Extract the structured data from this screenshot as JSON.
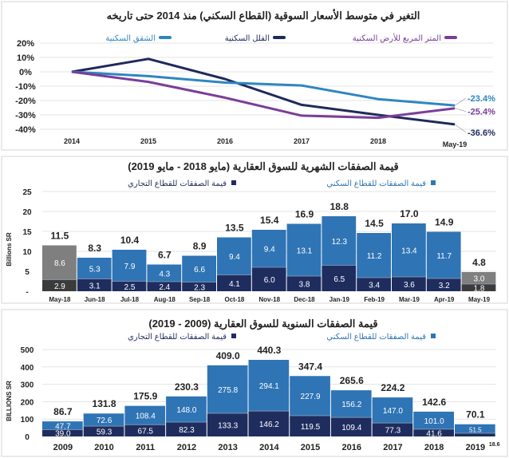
{
  "colors": {
    "apartments": "#2e86c1",
    "villas": "#1f2a5a",
    "land": "#7a3e97",
    "residential": "#2f74b5",
    "commercial": "#1f2d5e",
    "partial_res": "#7f7f7f",
    "partial_com": "#3b3b3b",
    "grid": "#e3e3e3"
  },
  "chart_data": [
    {
      "type": "line",
      "title": "التغير في متوسط الأسعار السوقية (القطاع السكني) منذ 2014 حتى تاريخه",
      "categories": [
        "2014",
        "2015",
        "2016",
        "2017",
        "2018",
        "May-19"
      ],
      "yticks": [
        "20%",
        "10%",
        "0%",
        "-10%",
        "-20%",
        "-30%",
        "-40%"
      ],
      "ylim": [
        -40,
        20
      ],
      "grid": true,
      "legend_position": "top",
      "series": [
        {
          "name": "الشقق السكنية",
          "color_key": "apartments",
          "values": [
            0,
            -3,
            -7.5,
            -9.5,
            -19,
            -23.4
          ],
          "end_label": "-23.4%"
        },
        {
          "name": "الفلل السكنية",
          "color_key": "villas",
          "values": [
            0,
            9,
            -5,
            -23,
            -30,
            -36.6
          ],
          "end_label": "-36.6%"
        },
        {
          "name": "المتر المربع للأرض السكنية",
          "color_key": "land",
          "values": [
            0,
            -7,
            -18,
            -30.5,
            -32,
            -25.4
          ],
          "end_label": "-25.4%"
        }
      ]
    },
    {
      "type": "bar",
      "stacked": true,
      "title": "قيمة الصفقات الشهرية للسوق العقارية (مايو 2018 - مايو 2019)",
      "ylabel": "Billions SR",
      "ylim": [
        0,
        25
      ],
      "yticks": [
        "25",
        "20",
        "15",
        "10",
        "5",
        "-"
      ],
      "grid": true,
      "legend_position": "top",
      "categories": [
        "May-18",
        "Jun-18",
        "Jul-18",
        "Aug-18",
        "Sep-18",
        "Oct-18",
        "Nov-18",
        "Dec-18",
        "Jan-19",
        "Feb-19",
        "Mar-19",
        "Apr-19",
        "May-19"
      ],
      "series": [
        {
          "name": "قيمة الصفقات للقطاع التجاري",
          "labels": [
            "2.9",
            "3.1",
            "2.5",
            "2.4",
            "2.3",
            "4.1",
            "6.0",
            "3.8",
            "6.5",
            "3.4",
            "3.6",
            "3.2",
            "1.8"
          ],
          "values": [
            2.9,
            3.1,
            2.5,
            2.4,
            2.3,
            4.1,
            6.0,
            3.8,
            6.5,
            3.4,
            3.6,
            3.2,
            1.8
          ]
        },
        {
          "name": "قيمة الصفقات للقطاع السكني",
          "labels": [
            "8.6",
            "5.3",
            "7.9",
            "4.3",
            "6.6",
            "9.4",
            "9.4",
            "13.1",
            "12.3",
            "11.2",
            "13.4",
            "11.7",
            "3.0"
          ],
          "values": [
            8.6,
            5.3,
            7.9,
            4.3,
            6.6,
            9.4,
            9.4,
            13.1,
            12.3,
            11.2,
            13.4,
            11.7,
            3.0
          ]
        }
      ],
      "totals": [
        "11.5",
        "8.3",
        "10.4",
        "6.7",
        "8.9",
        "13.5",
        "15.4",
        "16.9",
        "18.8",
        "14.5",
        "17.0",
        "14.9",
        "4.8"
      ],
      "highlighted_gray": [
        "May-18",
        "May-19"
      ]
    },
    {
      "type": "bar",
      "stacked": true,
      "title": "قيمة الصفقات السنوية للسوق العقارية (2009 - 2019)",
      "ylabel": "BILLIONS SR",
      "ylim": [
        0,
        500
      ],
      "yticks": [
        "500",
        "400",
        "300",
        "200",
        "100",
        "0"
      ],
      "grid": true,
      "legend_position": "top",
      "categories": [
        "2009",
        "2010",
        "2011",
        "2012",
        "2013",
        "2014",
        "2015",
        "2016",
        "2017",
        "2018",
        "2019"
      ],
      "series": [
        {
          "name": "قيمة الصفقات للقطاع التجاري",
          "labels": [
            "39.0",
            "59.3",
            "67.5",
            "82.3",
            "133.3",
            "146.2",
            "119.5",
            "109.4",
            "77.3",
            "41.6",
            "18.6"
          ],
          "values": [
            39.0,
            59.3,
            67.5,
            82.3,
            133.3,
            146.2,
            119.5,
            109.4,
            77.3,
            41.6,
            18.6
          ]
        },
        {
          "name": "قيمة الصفقات للقطاع السكني",
          "labels": [
            "47.7",
            "72.6",
            "108.4",
            "148.0",
            "275.8",
            "294.1",
            "227.9",
            "156.2",
            "147.0",
            "101.0",
            "51.5"
          ],
          "values": [
            47.7,
            72.6,
            108.4,
            148.0,
            275.8,
            294.1,
            227.9,
            156.2,
            147.0,
            101.0,
            51.5
          ]
        }
      ],
      "totals": [
        "86.7",
        "131.8",
        "175.9",
        "230.3",
        "409.0",
        "440.3",
        "347.4",
        "265.6",
        "224.2",
        "142.6",
        "70.1"
      ]
    }
  ]
}
